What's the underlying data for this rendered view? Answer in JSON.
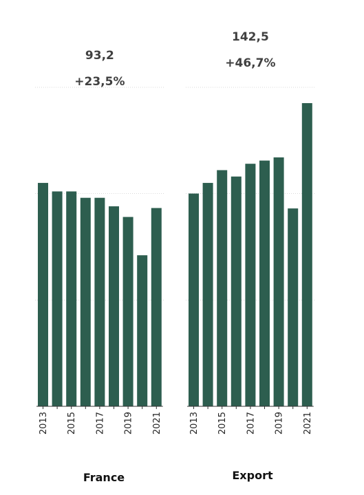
{
  "chart_data": {
    "type": "bar",
    "ylim": [
      0,
      142.5
    ],
    "grid": true,
    "color": "#2d5e4f",
    "panels": [
      {
        "name": "France",
        "value_label": "93,2",
        "change_label": "+23,5%",
        "categories": [
          "2013",
          "2014",
          "2015",
          "2016",
          "2017",
          "2018",
          "2019",
          "2020",
          "2021"
        ],
        "tick_labels": [
          "2013",
          "2015",
          "2017",
          "2019",
          "2021"
        ],
        "values": [
          105,
          101,
          101,
          98,
          98,
          94,
          89,
          71,
          93.2
        ]
      },
      {
        "name": "Export",
        "value_label": "142,5",
        "change_label": "+46,7%",
        "categories": [
          "2013",
          "2014",
          "2015",
          "2016",
          "2017",
          "2018",
          "2019",
          "2020",
          "2021"
        ],
        "tick_labels": [
          "2013",
          "2015",
          "2017",
          "2019",
          "2021"
        ],
        "values": [
          100,
          105,
          111,
          108,
          114,
          115.5,
          117,
          93,
          142.5
        ]
      }
    ]
  }
}
